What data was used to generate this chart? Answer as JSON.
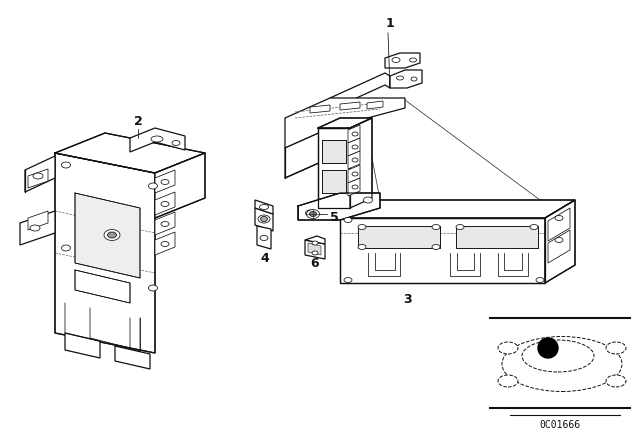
{
  "background_color": "#ffffff",
  "line_color": "#111111",
  "code": "0C01666",
  "fig_width": 6.4,
  "fig_height": 4.48,
  "dpi": 100,
  "lw_main": 0.9,
  "lw_thin": 0.55,
  "lw_dot": 0.5
}
